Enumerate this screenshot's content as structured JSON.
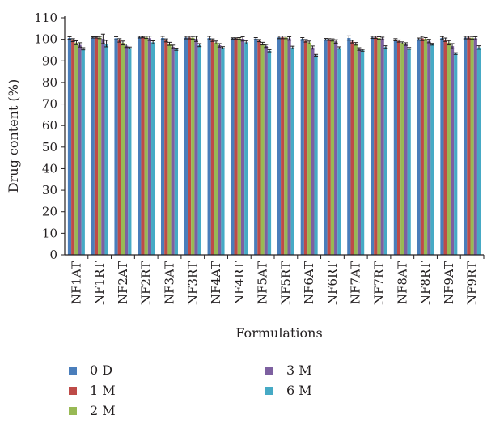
{
  "chart_data": {
    "type": "bar",
    "title": "",
    "xlabel": "Formulations",
    "ylabel": "Drug content (%)",
    "ylim": [
      0,
      110
    ],
    "yticks": [
      0,
      10,
      20,
      30,
      40,
      50,
      60,
      70,
      80,
      90,
      100,
      110
    ],
    "grid": false,
    "legend_position": "bottom",
    "categories": [
      "NF1AT",
      "NF1RT",
      "NF2AT",
      "NF2RT",
      "NF3AT",
      "NF3RT",
      "NF4AT",
      "NF4RT",
      "NF5AT",
      "NF5RT",
      "NF6AT",
      "NF6RT",
      "NF7AT",
      "NF7RT",
      "NF8AT",
      "NF8RT",
      "NF9AT",
      "NF9RT"
    ],
    "series": [
      {
        "name": "0 D",
        "color": "#4a7ebb",
        "values": [
          100.6,
          100.9,
          100.5,
          101.0,
          100.6,
          100.8,
          100.6,
          100.4,
          100.3,
          100.9,
          100.2,
          100.0,
          100.6,
          100.9,
          99.8,
          100.1,
          100.6,
          100.8
        ]
      },
      {
        "name": "1 M",
        "color": "#be4b48",
        "values": [
          99.6,
          100.9,
          99.5,
          101.0,
          99.5,
          100.8,
          99.6,
          100.4,
          99.4,
          100.9,
          99.3,
          99.9,
          98.9,
          100.9,
          99.2,
          100.4,
          99.8,
          100.8
        ]
      },
      {
        "name": "2 M",
        "color": "#98b954",
        "values": [
          98.4,
          100.8,
          98.3,
          100.9,
          97.9,
          100.7,
          98.5,
          100.4,
          98.0,
          100.9,
          98.5,
          99.7,
          97.9,
          100.6,
          98.3,
          100.2,
          98.4,
          100.7
        ]
      },
      {
        "name": "3 M",
        "color": "#7d60a0",
        "values": [
          97.4,
          100.2,
          97.0,
          100.5,
          96.5,
          100.2,
          97.2,
          100.2,
          96.9,
          100.4,
          96.2,
          99.0,
          95.5,
          100.4,
          97.8,
          99.2,
          96.8,
          100.5
        ]
      },
      {
        "name": "6 M",
        "color": "#46aac5",
        "values": [
          95.6,
          98.0,
          96.0,
          98.6,
          95.4,
          97.3,
          96.1,
          98.6,
          94.7,
          96.2,
          92.6,
          96.0,
          94.9,
          96.4,
          95.8,
          97.7,
          93.4,
          96.2
        ]
      }
    ],
    "errors": {
      "0 D": [
        0.6,
        0.3,
        0.7,
        0.4,
        0.8,
        0.6,
        0.8,
        0.3,
        0.5,
        0.6,
        0.6,
        0.4,
        1.0,
        0.5,
        0.5,
        0.5,
        0.7,
        0.6
      ],
      "1 M": [
        0.7,
        0.3,
        0.8,
        0.3,
        0.7,
        0.6,
        0.6,
        0.3,
        0.5,
        0.6,
        0.6,
        0.4,
        0.6,
        0.5,
        0.5,
        1.0,
        0.8,
        0.6
      ],
      "2 M": [
        0.9,
        0.5,
        0.9,
        0.5,
        0.7,
        0.6,
        0.7,
        0.4,
        0.6,
        0.6,
        0.7,
        0.5,
        0.6,
        0.6,
        0.5,
        0.6,
        1.0,
        0.6
      ],
      "3 M": [
        1.0,
        2.2,
        0.8,
        1.0,
        0.8,
        1.2,
        0.8,
        1.0,
        0.7,
        0.8,
        0.7,
        0.8,
        0.6,
        0.6,
        0.6,
        0.8,
        1.2,
        0.7
      ],
      "6 M": [
        0.5,
        1.5,
        0.4,
        0.7,
        0.5,
        0.7,
        0.5,
        0.8,
        0.5,
        0.6,
        0.4,
        0.5,
        0.4,
        0.6,
        0.4,
        0.4,
        0.4,
        0.8
      ]
    }
  }
}
